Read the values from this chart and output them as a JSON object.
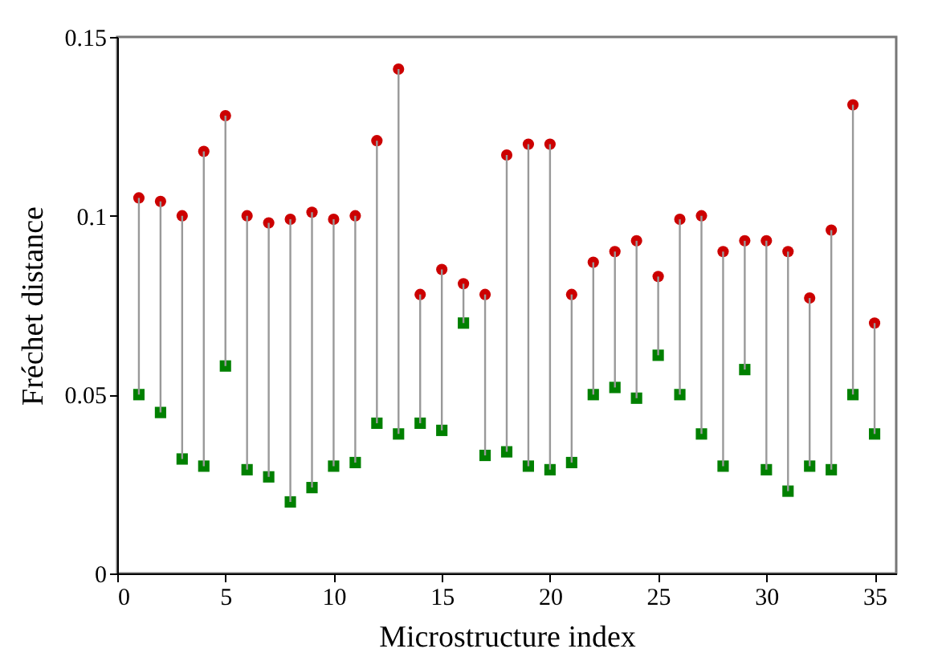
{
  "chart_data": {
    "type": "scatter",
    "xlabel": "Microstructure index",
    "ylabel": "Fréchet distance",
    "x": [
      1,
      2,
      3,
      4,
      5,
      6,
      7,
      8,
      9,
      10,
      11,
      12,
      13,
      14,
      15,
      16,
      17,
      18,
      19,
      20,
      21,
      22,
      23,
      24,
      25,
      26,
      27,
      28,
      29,
      30,
      31,
      32,
      33,
      34,
      35
    ],
    "series": [
      {
        "color": "#cc0000",
        "marker": "circle",
        "values": [
          0.105,
          0.104,
          0.1,
          0.118,
          0.128,
          0.1,
          0.098,
          0.099,
          0.101,
          0.099,
          0.1,
          0.121,
          0.141,
          0.078,
          0.085,
          0.081,
          0.078,
          0.117,
          0.12,
          0.12,
          0.078,
          0.087,
          0.09,
          0.093,
          0.083,
          0.099,
          0.1,
          0.09,
          0.093,
          0.093,
          0.09,
          0.077,
          0.096,
          0.131,
          0.07
        ],
        "errors": [
          [
            0.05,
            0.105
          ],
          [
            0.045,
            0.104
          ],
          [
            0.032,
            0.1
          ],
          [
            0.03,
            0.118
          ],
          [
            0.058,
            0.128
          ],
          [
            0.029,
            0.1
          ],
          [
            0.027,
            0.098
          ],
          [
            0.02,
            0.099
          ],
          [
            0.024,
            0.101
          ],
          [
            0.03,
            0.099
          ],
          [
            0.031,
            0.1
          ],
          [
            0.042,
            0.121
          ],
          [
            0.039,
            0.141
          ],
          [
            0.042,
            0.078
          ],
          [
            0.04,
            0.085
          ],
          [
            0.07,
            0.081
          ],
          [
            0.033,
            0.078
          ],
          [
            0.034,
            0.117
          ],
          [
            0.03,
            0.12
          ],
          [
            0.029,
            0.12
          ],
          [
            0.031,
            0.078
          ],
          [
            0.05,
            0.087
          ],
          [
            0.052,
            0.09
          ],
          [
            0.049,
            0.093
          ],
          [
            0.061,
            0.083
          ],
          [
            0.05,
            0.099
          ],
          [
            0.039,
            0.1
          ],
          [
            0.03,
            0.09
          ],
          [
            0.057,
            0.093
          ],
          [
            0.029,
            0.093
          ],
          [
            0.023,
            0.09
          ],
          [
            0.03,
            0.077
          ],
          [
            0.029,
            0.096
          ],
          [
            0.05,
            0.131
          ],
          [
            0.039,
            0.07
          ]
        ]
      },
      {
        "color": "#008000",
        "marker": "square",
        "values": [
          0.05,
          0.045,
          0.032,
          0.03,
          0.058,
          0.029,
          0.027,
          0.02,
          0.024,
          0.03,
          0.031,
          0.042,
          0.039,
          0.042,
          0.04,
          0.07,
          0.033,
          0.034,
          0.03,
          0.029,
          0.031,
          0.05,
          0.052,
          0.049,
          0.061,
          0.05,
          0.039,
          0.03,
          0.057,
          0.029,
          0.023,
          0.03,
          0.029,
          0.05,
          0.039
        ]
      }
    ],
    "xlim": [
      0,
      36
    ],
    "xticks": [
      0,
      5,
      10,
      15,
      20,
      25,
      30,
      35
    ],
    "ylim": [
      0,
      0.15
    ],
    "yticks": [
      0,
      0.05,
      0.1,
      0.15
    ],
    "grid": false
  }
}
